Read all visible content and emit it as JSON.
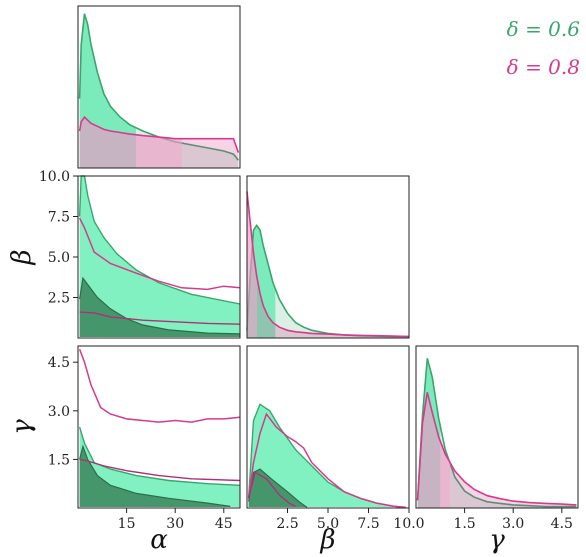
{
  "chart_data": {
    "type": "area",
    "layout": "corner",
    "parameters": [
      {
        "name": "α",
        "range": [
          0,
          50
        ],
        "ticks": [
          15,
          30,
          45
        ]
      },
      {
        "name": "β",
        "range": [
          0,
          10
        ],
        "ticks": [
          2.5,
          5.0,
          7.5,
          10.0
        ],
        "tick_labels": [
          "2.5",
          "5.0",
          "7.5",
          "10.0"
        ]
      },
      {
        "name": "γ",
        "range": [
          0,
          5
        ],
        "ticks": [
          1.5,
          3.0,
          4.5
        ],
        "tick_labels": [
          "1.5",
          "3.0",
          "4.5"
        ]
      }
    ],
    "series": [
      {
        "name": "δ = 0.6",
        "color": "#3aa66e",
        "fill_light": "#2ee89a",
        "fill_dark": "#3f8c63"
      },
      {
        "name": "δ = 0.8",
        "color": "#d63a8c",
        "fill_light": "#f5a8d0",
        "fill_dark": "#b36b8f"
      }
    ],
    "marginals": {
      "alpha": {
        "x": [
          0.5,
          1,
          2,
          3,
          4,
          6,
          8,
          10,
          13,
          16,
          20,
          25,
          30,
          35,
          40,
          45,
          48,
          49.5
        ],
        "delta_0.6": [
          0.45,
          0.8,
          1.0,
          0.93,
          0.8,
          0.62,
          0.48,
          0.4,
          0.33,
          0.28,
          0.24,
          0.2,
          0.17,
          0.15,
          0.13,
          0.11,
          0.09,
          0.05
        ],
        "delta_0.8": [
          0.24,
          0.3,
          0.33,
          0.31,
          0.29,
          0.27,
          0.25,
          0.24,
          0.23,
          0.22,
          0.21,
          0.2,
          0.19,
          0.19,
          0.19,
          0.19,
          0.19,
          0.1
        ],
        "shaded_to": {
          "delta_0.6": 17.9,
          "delta_0.8": 32.1
        }
      },
      "beta": {
        "x": [
          0,
          0.2,
          0.4,
          0.6,
          0.8,
          1.0,
          1.3,
          1.6,
          2.0,
          2.5,
          3.0,
          3.5,
          4.0,
          5.0,
          6.0,
          7.0,
          8.0,
          9.0,
          10.0
        ],
        "delta_0.6": [
          0.05,
          0.4,
          0.7,
          0.73,
          0.7,
          0.6,
          0.48,
          0.36,
          0.25,
          0.16,
          0.1,
          0.07,
          0.05,
          0.03,
          0.02,
          0.015,
          0.012,
          0.01,
          0.01
        ],
        "delta_0.8": [
          0.95,
          0.75,
          0.55,
          0.4,
          0.29,
          0.21,
          0.14,
          0.1,
          0.07,
          0.05,
          0.04,
          0.035,
          0.03,
          0.025,
          0.02,
          0.017,
          0.015,
          0.012,
          0.01
        ],
        "shaded_to": {
          "delta_0.6": 1.75,
          "delta_0.8": 0.62
        }
      },
      "gamma": {
        "x": [
          0.05,
          0.2,
          0.35,
          0.5,
          0.7,
          0.9,
          1.2,
          1.5,
          1.8,
          2.2,
          2.6,
          3.0,
          3.5,
          4.0,
          4.5,
          4.95
        ],
        "delta_0.6": [
          0.05,
          0.6,
          0.97,
          0.85,
          0.58,
          0.38,
          0.2,
          0.11,
          0.07,
          0.04,
          0.03,
          0.02,
          0.015,
          0.01,
          0.01,
          0.01
        ],
        "delta_0.8": [
          0.05,
          0.55,
          0.75,
          0.62,
          0.46,
          0.35,
          0.24,
          0.17,
          0.12,
          0.08,
          0.06,
          0.045,
          0.035,
          0.03,
          0.025,
          0.02
        ],
        "shaded_to": {
          "delta_0.6": 0.75,
          "delta_0.8": 1.05
        }
      }
    },
    "joint": {
      "alpha_beta": {
        "delta_0.6": {
          "outer_upper": [
            [
              0.5,
              7.5
            ],
            [
              1,
              10
            ],
            [
              2,
              10
            ],
            [
              3,
              8.8
            ],
            [
              5,
              7.2
            ],
            [
              8,
              6.2
            ],
            [
              12,
              5.2
            ],
            [
              18,
              4.2
            ],
            [
              25,
              3.4
            ],
            [
              35,
              2.7
            ],
            [
              50,
              2.1
            ]
          ],
          "outer_lower": [
            [
              0.5,
              0.25
            ],
            [
              50,
              0.25
            ]
          ],
          "inner_upper": [
            [
              0.5,
              2.4
            ],
            [
              1.5,
              3.7
            ],
            [
              3,
              3.3
            ],
            [
              6,
              2.5
            ],
            [
              10,
              1.8
            ],
            [
              15,
              1.2
            ],
            [
              20,
              0.8
            ],
            [
              28,
              0.5
            ],
            [
              40,
              0.3
            ],
            [
              50,
              0.25
            ]
          ]
        },
        "delta_0.8": {
          "outer_upper": [
            [
              0.5,
              7.4
            ],
            [
              2,
              6.8
            ],
            [
              5,
              5.3
            ],
            [
              10,
              4.6
            ],
            [
              18,
              4.0
            ],
            [
              25,
              3.5
            ],
            [
              32,
              3.1
            ],
            [
              40,
              3.0
            ],
            [
              45,
              3.2
            ],
            [
              50,
              3.1
            ]
          ],
          "inner_upper": [
            [
              0.5,
              1.6
            ],
            [
              5,
              1.55
            ],
            [
              10,
              1.3
            ],
            [
              20,
              1.1
            ],
            [
              30,
              1.0
            ],
            [
              40,
              0.9
            ],
            [
              50,
              0.85
            ]
          ]
        }
      },
      "alpha_gamma": {
        "delta_0.6": {
          "outer_upper": [
            [
              0.5,
              2.5
            ],
            [
              2,
              2.0
            ],
            [
              5,
              1.4
            ],
            [
              10,
              1.2
            ],
            [
              18,
              1.0
            ],
            [
              28,
              0.85
            ],
            [
              40,
              0.75
            ],
            [
              50,
              0.7
            ]
          ],
          "outer_lower": [
            [
              0.5,
              0.02
            ],
            [
              50,
              0.02
            ]
          ],
          "inner_upper": [
            [
              0.5,
              1.5
            ],
            [
              1.5,
              1.9
            ],
            [
              3,
              1.5
            ],
            [
              6,
              1.0
            ],
            [
              10,
              0.7
            ],
            [
              18,
              0.45
            ],
            [
              28,
              0.3
            ],
            [
              40,
              0.15
            ],
            [
              47,
              0.05
            ]
          ]
        },
        "delta_0.8": {
          "outer_upper": [
            [
              0.5,
              4.9
            ],
            [
              2,
              4.5
            ],
            [
              4,
              3.8
            ],
            [
              7,
              3.1
            ],
            [
              10,
              2.9
            ],
            [
              15,
              2.75
            ],
            [
              20,
              2.7
            ],
            [
              25,
              2.65
            ],
            [
              30,
              2.7
            ],
            [
              35,
              2.65
            ],
            [
              40,
              2.75
            ],
            [
              45,
              2.75
            ],
            [
              50,
              2.8
            ]
          ],
          "inner_upper": [
            [
              0.5,
              1.5
            ],
            [
              3,
              1.45
            ],
            [
              8,
              1.3
            ],
            [
              15,
              1.15
            ],
            [
              25,
              1.0
            ],
            [
              35,
              0.9
            ],
            [
              50,
              0.85
            ]
          ]
        }
      },
      "beta_gamma": {
        "delta_0.6": {
          "outer_upper": [
            [
              0.1,
              0.3
            ],
            [
              0.4,
              2.7
            ],
            [
              0.8,
              3.2
            ],
            [
              1.4,
              3.0
            ],
            [
              2.0,
              2.5
            ],
            [
              3.0,
              1.8
            ],
            [
              4.0,
              1.3
            ],
            [
              5.0,
              0.8
            ],
            [
              6.0,
              0.5
            ],
            [
              7.0,
              0.3
            ],
            [
              8.0,
              0.15
            ],
            [
              9.0,
              0.06
            ],
            [
              9.8,
              0.02
            ]
          ],
          "outer_lower": [
            [
              0.1,
              0.02
            ],
            [
              9.8,
              0.02
            ]
          ],
          "inner_upper": [
            [
              0.1,
              0.2
            ],
            [
              0.4,
              1.1
            ],
            [
              0.8,
              1.2
            ],
            [
              1.5,
              0.9
            ],
            [
              2.5,
              0.5
            ],
            [
              3.2,
              0.2
            ],
            [
              3.7,
              0.02
            ]
          ]
        },
        "delta_0.8": {
          "outer_upper": [
            [
              0.1,
              0.3
            ],
            [
              0.4,
              1.4
            ],
            [
              0.8,
              2.3
            ],
            [
              1.2,
              2.9
            ],
            [
              1.8,
              2.5
            ],
            [
              2.5,
              2.2
            ],
            [
              3.0,
              2.05
            ],
            [
              3.5,
              1.85
            ],
            [
              4.0,
              1.4
            ],
            [
              5.0,
              0.9
            ],
            [
              6.0,
              0.5
            ],
            [
              7.0,
              0.3
            ],
            [
              8.0,
              0.15
            ],
            [
              9.0,
              0.06
            ],
            [
              9.8,
              0.02
            ]
          ],
          "inner_upper": [
            [
              0.1,
              0.3
            ],
            [
              0.5,
              1.1
            ],
            [
              1.2,
              0.9
            ],
            [
              2.0,
              0.4
            ],
            [
              2.6,
              0.15
            ],
            [
              3.0,
              0.05
            ]
          ]
        }
      }
    },
    "xlabels": [
      "α",
      "β",
      "γ"
    ],
    "ylabels": [
      "β",
      "γ"
    ],
    "legend": [
      "δ = 0.6",
      "δ = 0.8"
    ],
    "legend_placement": "top-right",
    "grid": false
  }
}
